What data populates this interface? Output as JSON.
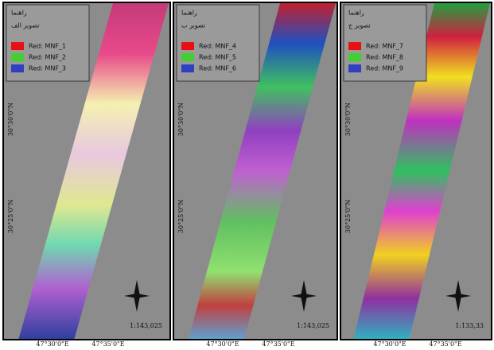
{
  "panels": [
    {
      "legend_title": "راهنما",
      "legend_subtitle": "تصویر الف",
      "legend_items": [
        "Red: MNF_1",
        "Red: MNF_2",
        "Red: MNF_3"
      ],
      "lat_labels": [
        "30°30'0\"N",
        "30°25'0\"N"
      ],
      "lon_labels": [
        "47°30'0\"E",
        "47°35'0\"E"
      ],
      "scale": "1:143,025"
    },
    {
      "legend_title": "راهنما",
      "legend_subtitle": "تصویر ب",
      "legend_items": [
        "Red: MNF_4",
        "Red: MNF_5",
        "Red: MNF_6"
      ],
      "lat_labels": [
        "30°30'0\"N",
        "30°25'0\"N"
      ],
      "lon_labels": [
        "47°30'0\"E",
        "47°35'0\"E"
      ],
      "scale": "1:143,025"
    },
    {
      "legend_title": "راهنما",
      "legend_subtitle": "تصویر ج",
      "legend_items": [
        "Red: MNF_7",
        "Red: MNF_8",
        "Red: MNF_9"
      ],
      "lat_labels": [
        "30°30'0\"N",
        "30°25'0\"N"
      ],
      "lon_labels": [
        "47°30'0\"E",
        "47°35'0\"E"
      ],
      "scale": "1:133,33"
    }
  ]
}
